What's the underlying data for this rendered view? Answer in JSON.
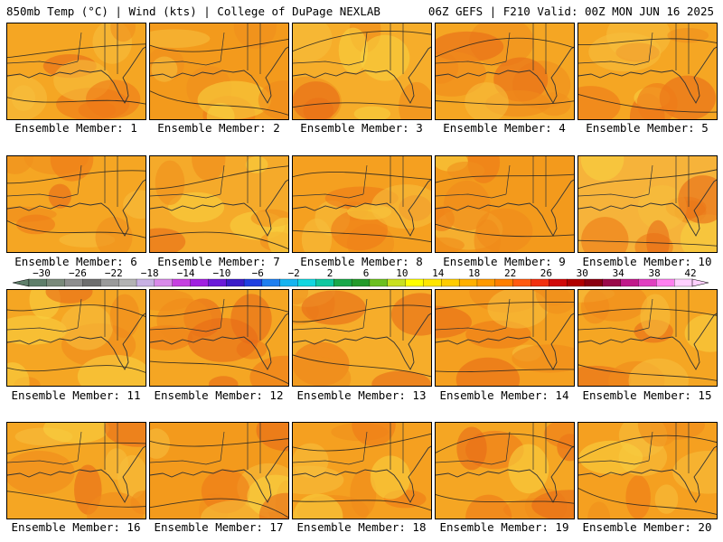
{
  "header": {
    "left": "850mb Temp (°C) | Wind (kts) | College of DuPage NEXLAB",
    "right": "06Z GEFS | F210 Valid: 00Z MON JUN 16 2025"
  },
  "members": [
    {
      "label": "Ensemble Member: 1"
    },
    {
      "label": "Ensemble Member: 2"
    },
    {
      "label": "Ensemble Member: 3"
    },
    {
      "label": "Ensemble Member: 4"
    },
    {
      "label": "Ensemble Member: 5"
    },
    {
      "label": "Ensemble Member: 6"
    },
    {
      "label": "Ensemble Member: 7"
    },
    {
      "label": "Ensemble Member: 8"
    },
    {
      "label": "Ensemble Member: 9"
    },
    {
      "label": "Ensemble Member: 10"
    },
    {
      "label": "Ensemble Member: 11"
    },
    {
      "label": "Ensemble Member: 12"
    },
    {
      "label": "Ensemble Member: 13"
    },
    {
      "label": "Ensemble Member: 14"
    },
    {
      "label": "Ensemble Member: 15"
    },
    {
      "label": "Ensemble Member: 16"
    },
    {
      "label": "Ensemble Member: 17"
    },
    {
      "label": "Ensemble Member: 18"
    },
    {
      "label": "Ensemble Member: 19"
    },
    {
      "label": "Ensemble Member: 20"
    }
  ],
  "colorbar": {
    "tick_labels": [
      "−30",
      "−26",
      "−22",
      "−18",
      "−14",
      "−10",
      "−6",
      "−2",
      "2",
      "6",
      "10",
      "14",
      "18",
      "22",
      "26",
      "30",
      "34",
      "38",
      "42"
    ],
    "colors": [
      "#5f7f6a",
      "#7a8a7a",
      "#8e8e8e",
      "#6e6e6e",
      "#9a9a9a",
      "#b3b3b3",
      "#c7b1e3",
      "#d98ae9",
      "#c640e0",
      "#a020e0",
      "#6a1bd8",
      "#3a1cc8",
      "#1f3fe0",
      "#1f7ff0",
      "#17b4f0",
      "#12d6e0",
      "#10c8a0",
      "#1aa84a",
      "#249a2a",
      "#6cc020",
      "#c8e020",
      "#ffff00",
      "#ffe600",
      "#ffcc00",
      "#ffb000",
      "#ff9a00",
      "#ff7f00",
      "#ff5a10",
      "#f03010",
      "#d00a0a",
      "#b00000",
      "#8a0010",
      "#9a0a4a",
      "#c01a8a",
      "#e040c0",
      "#ff80f0",
      "#ffd0ff"
    ]
  }
}
